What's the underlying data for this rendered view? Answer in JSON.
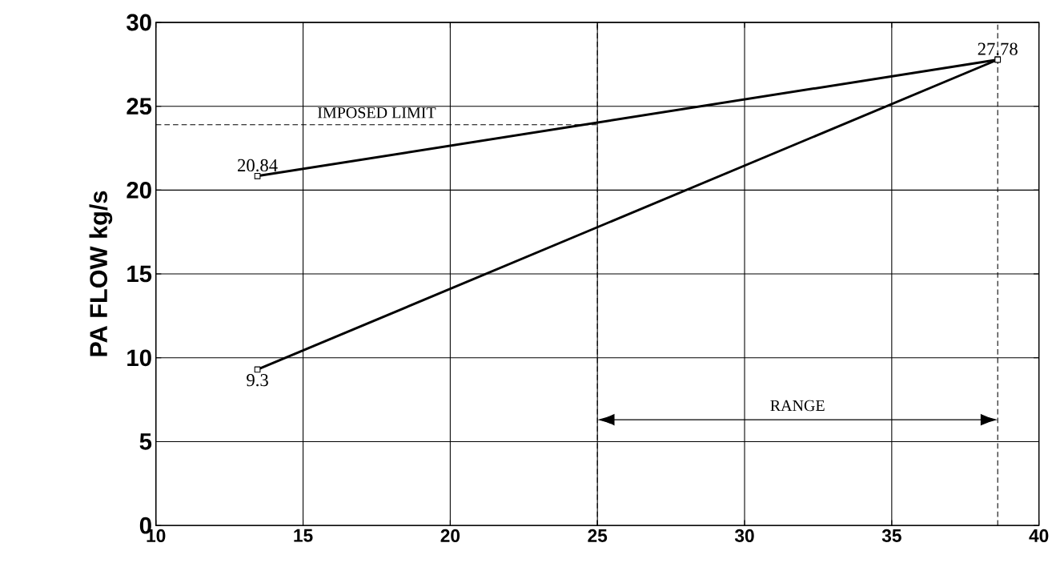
{
  "chart_data": {
    "type": "line",
    "ylabel": "PA FLOW kg/s",
    "xlim": [
      10,
      40
    ],
    "xticks": [
      10,
      15,
      20,
      25,
      30,
      35,
      40
    ],
    "ylim": [
      0,
      30
    ],
    "yticks": [
      0,
      5,
      10,
      15,
      20,
      25,
      30
    ],
    "grid": true,
    "marker": "square",
    "line_style": "solid",
    "x": [
      13.45,
      38.6
    ],
    "series": [
      {
        "color": "#000000",
        "values": [
          20.84,
          27.78
        ],
        "value_labels": [
          "20.84",
          "27.78"
        ]
      },
      {
        "color": "#000000",
        "values": [
          9.3,
          27.78
        ],
        "value_labels": [
          "9.3",
          null
        ]
      }
    ],
    "ref_lines": [
      {
        "axis": "y",
        "value": 23.9,
        "label": "IMPOSED LIMIT",
        "line_style": "dashed"
      },
      {
        "axis": "x",
        "value": 25,
        "line_style": "dashed"
      },
      {
        "axis": "x",
        "value": 38.6,
        "line_style": "dashed"
      }
    ],
    "annotations": [
      "RANGE"
    ]
  }
}
